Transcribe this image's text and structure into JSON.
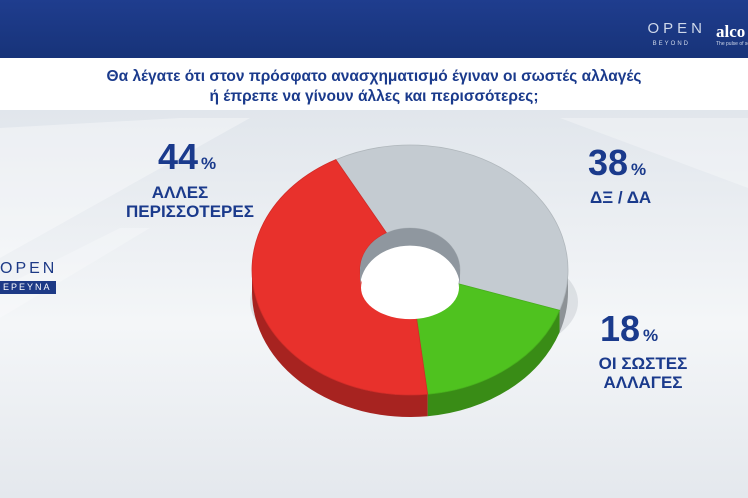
{
  "header": {
    "brand": "OPEN",
    "brand_sub": "BEYOND",
    "partner": "alco",
    "partner_sub": "The pulse of society"
  },
  "question": {
    "line1": "Θα λέγατε ότι στον πρόσφατο ανασχηματισμό έγιναν οι σωστές αλλαγές",
    "line2": "ή έπρεπε να γίνουν άλλες και περισσότερες;"
  },
  "side_logo": {
    "brand": "OPEN",
    "sub": "ΕΡΕΥΝΑ"
  },
  "colors": {
    "red": "#e8312c",
    "gray": "#c4cbd1",
    "green": "#4fc21f",
    "text": "#1a3a8c",
    "header": "#1f3d8e"
  },
  "chart_data": {
    "type": "pie",
    "style": "3d-donut",
    "slices": [
      {
        "value": 44,
        "pct_label": "44",
        "unit": "%",
        "label_lines": [
          "ΑΛΛΕΣ",
          "ΠΕΡΙΣΣΟΤΕΡΕΣ"
        ],
        "color": "#e8312c"
      },
      {
        "value": 38,
        "pct_label": "38",
        "unit": "%",
        "label_lines": [
          "ΔΞ / ΔΑ"
        ],
        "color": "#c4cbd1"
      },
      {
        "value": 18,
        "pct_label": "18",
        "unit": "%",
        "label_lines": [
          "ΟΙ ΣΩΣΤΕΣ",
          "ΑΛΛΑΓΕΣ"
        ],
        "color": "#4fc21f"
      }
    ]
  }
}
